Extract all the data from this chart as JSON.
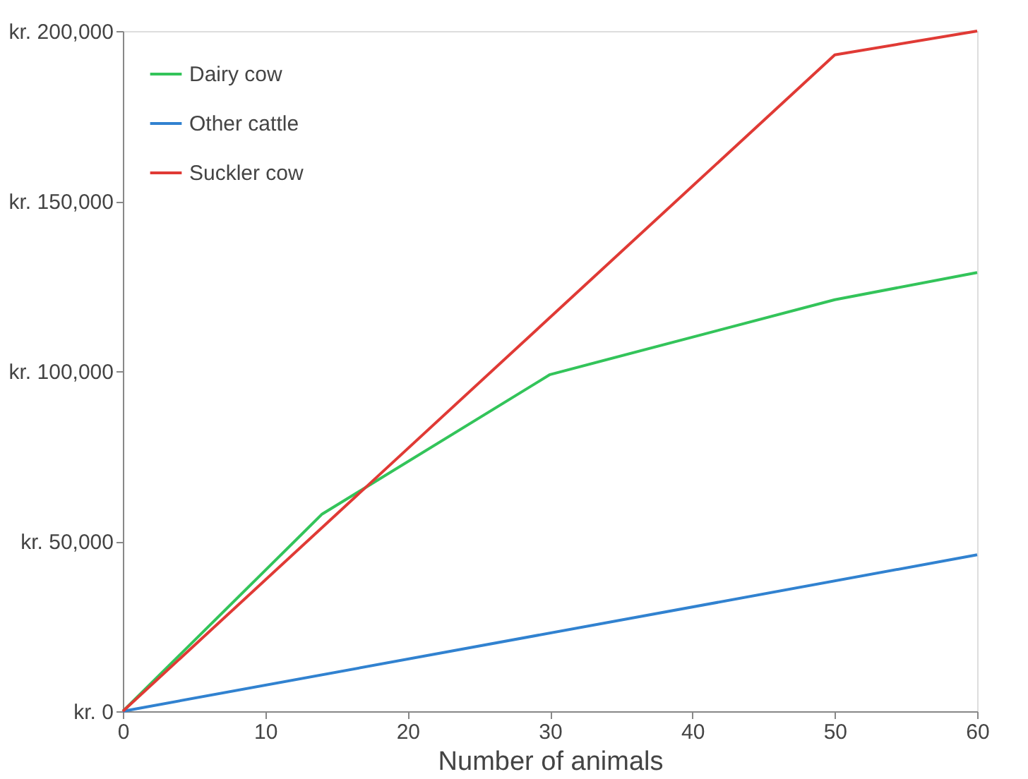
{
  "chart_data": {
    "type": "line",
    "xlabel": "Number of animals",
    "xlim": [
      0,
      60
    ],
    "xticks": [
      0,
      10,
      20,
      30,
      40,
      50,
      60
    ],
    "ylim": [
      0,
      200000
    ],
    "yticks": [
      {
        "value": 0,
        "label": "kr. 0"
      },
      {
        "value": 50000,
        "label": "kr. 50,000"
      },
      {
        "value": 100000,
        "label": "kr. 100,000"
      },
      {
        "value": 150000,
        "label": "kr. 150,000"
      },
      {
        "value": 200000,
        "label": "kr. 200,000"
      }
    ],
    "grid": false,
    "legend": "top left",
    "marker": "none",
    "line_style": "solid",
    "series": [
      {
        "name": "Dairy cow",
        "color": "#33c45a",
        "x": [
          0,
          14,
          30,
          50,
          60
        ],
        "values": [
          0,
          58000,
          99000,
          121000,
          129000
        ]
      },
      {
        "name": "Other cattle",
        "color": "#3182d0",
        "x": [
          0,
          60
        ],
        "values": [
          0,
          46000
        ]
      },
      {
        "name": "Suckler cow",
        "color": "#e03a35",
        "x": [
          0,
          50,
          60
        ],
        "values": [
          0,
          193000,
          200000
        ]
      }
    ]
  }
}
